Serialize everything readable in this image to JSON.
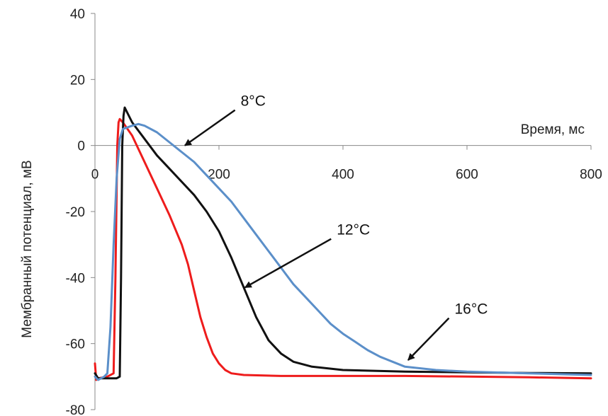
{
  "chart_data": {
    "type": "line",
    "ylabel": "Мембранный потенциал, мВ",
    "xlabel": "Время, мс",
    "xlim": [
      0,
      800
    ],
    "ylim": [
      -80,
      40
    ],
    "x_ticks": [
      0,
      200,
      400,
      600,
      800
    ],
    "y_ticks": [
      -80,
      -60,
      -40,
      -20,
      0,
      20,
      40
    ],
    "x_tick_labels": [
      "0",
      "200",
      "400",
      "600",
      "800"
    ],
    "y_tick_labels": [
      "-80",
      "-60",
      "-40",
      "-20",
      "0",
      "20",
      "40"
    ],
    "grid": false,
    "series": [
      {
        "color": "#ee1c1c",
        "points": [
          [
            0,
            -66
          ],
          [
            2,
            -71
          ],
          [
            5,
            -70.5
          ],
          [
            20,
            -70
          ],
          [
            30,
            -69
          ],
          [
            33,
            -40
          ],
          [
            36,
            0
          ],
          [
            38,
            7
          ],
          [
            40,
            8
          ],
          [
            45,
            7
          ],
          [
            60,
            3
          ],
          [
            80,
            -5
          ],
          [
            100,
            -13
          ],
          [
            120,
            -21
          ],
          [
            140,
            -30
          ],
          [
            150,
            -36
          ],
          [
            160,
            -44
          ],
          [
            170,
            -52
          ],
          [
            180,
            -58
          ],
          [
            190,
            -63
          ],
          [
            200,
            -66
          ],
          [
            210,
            -68
          ],
          [
            220,
            -69
          ],
          [
            240,
            -69.5
          ],
          [
            300,
            -69.8
          ],
          [
            400,
            -69.8
          ],
          [
            500,
            -69.8
          ],
          [
            600,
            -70
          ],
          [
            700,
            -70.2
          ],
          [
            800,
            -70.5
          ]
        ]
      },
      {
        "color": "#111111",
        "points": [
          [
            0,
            -69
          ],
          [
            5,
            -70.5
          ],
          [
            20,
            -70.5
          ],
          [
            35,
            -70.5
          ],
          [
            40,
            -70
          ],
          [
            42,
            -40
          ],
          [
            44,
            0
          ],
          [
            46,
            9
          ],
          [
            48,
            11.5
          ],
          [
            52,
            10
          ],
          [
            60,
            7
          ],
          [
            80,
            2
          ],
          [
            100,
            -3
          ],
          [
            120,
            -7
          ],
          [
            140,
            -11
          ],
          [
            160,
            -15
          ],
          [
            180,
            -20
          ],
          [
            200,
            -26
          ],
          [
            220,
            -34
          ],
          [
            240,
            -43
          ],
          [
            260,
            -52
          ],
          [
            280,
            -59
          ],
          [
            300,
            -63
          ],
          [
            320,
            -65.5
          ],
          [
            350,
            -67
          ],
          [
            400,
            -68
          ],
          [
            500,
            -68.5
          ],
          [
            600,
            -68.7
          ],
          [
            700,
            -68.9
          ],
          [
            800,
            -69
          ]
        ]
      },
      {
        "color": "#5b8fc9",
        "points": [
          [
            0,
            -70
          ],
          [
            5,
            -71
          ],
          [
            15,
            -70
          ],
          [
            20,
            -69
          ],
          [
            25,
            -55
          ],
          [
            30,
            -30
          ],
          [
            35,
            -10
          ],
          [
            40,
            2
          ],
          [
            45,
            5
          ],
          [
            60,
            6
          ],
          [
            70,
            6.5
          ],
          [
            80,
            6
          ],
          [
            100,
            4
          ],
          [
            120,
            1
          ],
          [
            140,
            -2
          ],
          [
            160,
            -5
          ],
          [
            180,
            -9
          ],
          [
            200,
            -13
          ],
          [
            220,
            -17
          ],
          [
            240,
            -22
          ],
          [
            260,
            -27
          ],
          [
            280,
            -32
          ],
          [
            300,
            -37
          ],
          [
            320,
            -42
          ],
          [
            340,
            -46
          ],
          [
            360,
            -50
          ],
          [
            380,
            -54
          ],
          [
            400,
            -57
          ],
          [
            420,
            -59.5
          ],
          [
            440,
            -62
          ],
          [
            460,
            -64
          ],
          [
            480,
            -65.5
          ],
          [
            500,
            -67
          ],
          [
            550,
            -68
          ],
          [
            600,
            -68.5
          ],
          [
            700,
            -69
          ],
          [
            800,
            -69.5
          ]
        ]
      }
    ],
    "annotations": [
      {
        "text": "8°C",
        "x": 235,
        "y": 12,
        "arrow_to": [
          145,
          0
        ]
      },
      {
        "text": "12°C",
        "x": 390,
        "y": -27,
        "arrow_to": [
          242,
          -43
        ]
      },
      {
        "text": "16°C",
        "x": 580,
        "y": -51,
        "arrow_to": [
          505,
          -65
        ]
      }
    ]
  }
}
